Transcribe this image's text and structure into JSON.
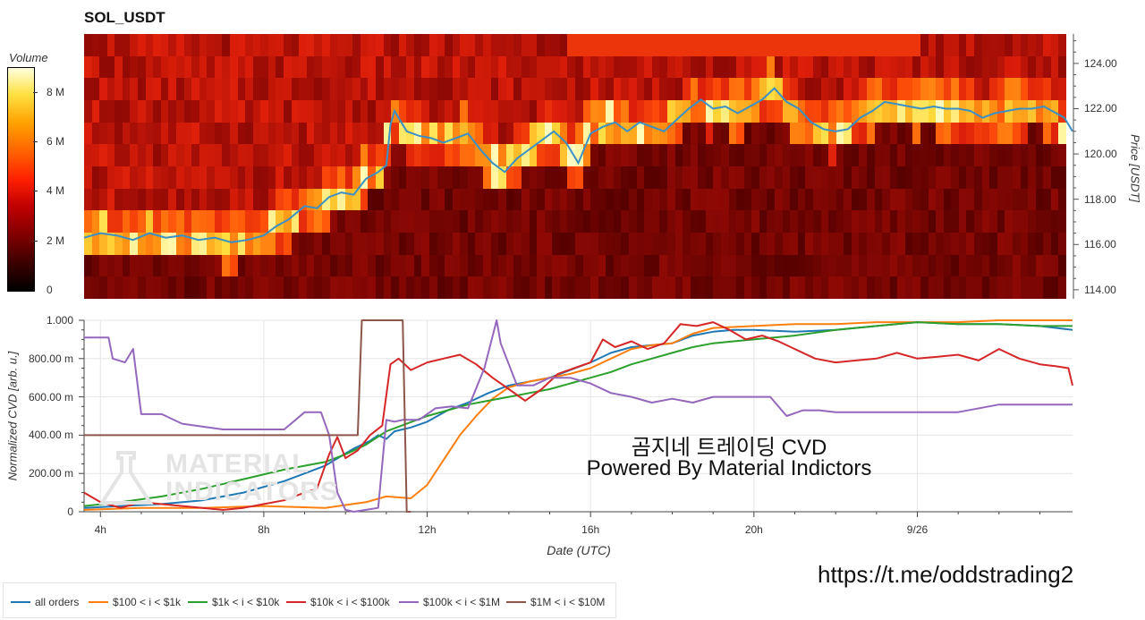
{
  "title": "SOL_USDT",
  "colorbar": {
    "label": "Volume",
    "ticks": [
      {
        "label": "8 M",
        "value": 8
      },
      {
        "label": "6 M",
        "value": 6
      },
      {
        "label": "4 M",
        "value": 4
      },
      {
        "label": "2 M",
        "value": 2
      },
      {
        "label": "0",
        "value": 0
      }
    ],
    "max_value": 9
  },
  "chart_data": [
    {
      "type": "heatmap",
      "title": "SOL_USDT",
      "ylabel": "Price [USDT]",
      "y_ticks": [
        "124.00",
        "122.00",
        "120.00",
        "118.00",
        "116.00",
        "114.00"
      ],
      "ylim": [
        113.6,
        125.3
      ],
      "zlabel": "Volume",
      "price_series": {
        "name": "price",
        "color": "#3a8fc4",
        "x_hours": [
          3.6,
          4.0,
          4.4,
          4.8,
          5.2,
          5.6,
          6.0,
          6.4,
          6.8,
          7.2,
          7.6,
          8.0,
          8.3,
          8.6,
          9.0,
          9.3,
          9.6,
          9.9,
          10.2,
          10.5,
          10.8,
          11.0,
          11.1,
          11.2,
          11.5,
          11.8,
          12.1,
          12.4,
          12.7,
          13.0,
          13.3,
          13.6,
          13.9,
          14.2,
          14.5,
          14.8,
          15.1,
          15.4,
          15.7,
          16.0,
          16.3,
          16.6,
          16.9,
          17.2,
          17.5,
          17.8,
          18.1,
          18.4,
          18.7,
          19.0,
          19.3,
          19.6,
          19.9,
          20.2,
          20.5,
          20.8,
          21.1,
          21.4,
          21.7,
          22.0,
          22.3,
          22.6,
          22.9,
          23.2,
          23.5,
          23.8,
          24.1,
          24.4,
          24.7,
          25.0,
          25.3,
          25.6,
          25.9,
          26.2,
          26.5,
          26.8,
          27.1,
          27.4,
          27.6,
          27.8
        ],
        "values": [
          116.3,
          116.5,
          116.4,
          116.2,
          116.5,
          116.3,
          116.4,
          116.2,
          116.3,
          116.1,
          116.2,
          116.4,
          116.8,
          117.1,
          117.7,
          117.6,
          118.1,
          118.3,
          118.2,
          118.9,
          119.2,
          119.5,
          121.3,
          121.9,
          121.0,
          120.8,
          120.7,
          120.5,
          120.7,
          120.9,
          120.2,
          119.6,
          119.2,
          119.8,
          120.2,
          120.6,
          121.0,
          120.5,
          119.6,
          120.9,
          121.2,
          121.4,
          121.0,
          121.4,
          121.2,
          121.0,
          121.5,
          122.0,
          122.4,
          122.0,
          122.1,
          121.8,
          122.1,
          122.4,
          122.9,
          122.3,
          122.0,
          121.4,
          121.1,
          121.0,
          121.1,
          121.6,
          121.9,
          122.3,
          122.2,
          122.1,
          122.0,
          122.1,
          122.0,
          122.0,
          121.9,
          121.6,
          121.8,
          121.9,
          122.0,
          122.0,
          122.1,
          121.8,
          121.6,
          121.0
        ]
      }
    },
    {
      "type": "line",
      "xlabel": "Date (UTC)",
      "ylabel": "Normalized CVD [arb. u.]",
      "x_ticks": [
        {
          "label": "4h",
          "hour": 4
        },
        {
          "label": "8h",
          "hour": 8
        },
        {
          "label": "12h",
          "hour": 12
        },
        {
          "label": "16h",
          "hour": 16
        },
        {
          "label": "20h",
          "hour": 20
        },
        {
          "label": "9/26",
          "hour": 24
        }
      ],
      "y_ticks": [
        {
          "label": "1.000",
          "value": 1.0
        },
        {
          "label": "800.00 m",
          "value": 0.8
        },
        {
          "label": "600.00 m",
          "value": 0.6
        },
        {
          "label": "400.00 m",
          "value": 0.4
        },
        {
          "label": "200.00 m",
          "value": 0.2
        },
        {
          "label": "0",
          "value": 0.0
        }
      ],
      "xlim": [
        3.6,
        27.8
      ],
      "ylim": [
        0,
        1
      ],
      "grid": true,
      "legend_position": "bottom-left",
      "series": [
        {
          "name": "all orders",
          "color": "#1f77b4",
          "x": [
            3.6,
            4.5,
            5.5,
            6.5,
            7.5,
            8.5,
            9.5,
            10.2,
            10.6,
            10.8,
            11.0,
            11.2,
            11.6,
            12.0,
            12.5,
            13.0,
            13.5,
            14.0,
            14.5,
            15.0,
            15.5,
            16.0,
            16.5,
            17.0,
            17.5,
            18.0,
            18.5,
            19.0,
            19.5,
            20.0,
            21.0,
            22.0,
            23.0,
            24.0,
            25.0,
            26.0,
            27.0,
            27.8
          ],
          "values": [
            0.02,
            0.03,
            0.04,
            0.06,
            0.1,
            0.16,
            0.24,
            0.33,
            0.37,
            0.4,
            0.38,
            0.42,
            0.44,
            0.47,
            0.53,
            0.57,
            0.62,
            0.66,
            0.68,
            0.7,
            0.74,
            0.78,
            0.83,
            0.86,
            0.87,
            0.88,
            0.92,
            0.94,
            0.95,
            0.95,
            0.94,
            0.95,
            0.97,
            0.99,
            0.98,
            0.98,
            0.97,
            0.95
          ]
        },
        {
          "name": "$100 < i < $1k",
          "color": "#ff7f0e",
          "x": [
            3.6,
            5.0,
            6.5,
            8.0,
            9.5,
            10.5,
            11.0,
            11.6,
            12.0,
            12.4,
            12.8,
            13.2,
            13.6,
            14.0,
            14.5,
            15.0,
            15.5,
            16.0,
            16.5,
            17.0,
            17.5,
            18.0,
            18.5,
            19.0,
            20.0,
            21.0,
            22.0,
            23.0,
            24.0,
            25.0,
            26.0,
            27.0,
            27.8
          ],
          "values": [
            0.01,
            0.02,
            0.02,
            0.03,
            0.02,
            0.05,
            0.08,
            0.07,
            0.14,
            0.27,
            0.4,
            0.5,
            0.59,
            0.65,
            0.68,
            0.7,
            0.72,
            0.75,
            0.8,
            0.85,
            0.87,
            0.88,
            0.93,
            0.96,
            0.97,
            0.98,
            0.98,
            0.99,
            0.99,
            0.99,
            1.0,
            1.0,
            1.0
          ]
        },
        {
          "name": "$1k < i < $10k",
          "color": "#2ca02c",
          "x": [
            3.6,
            4.5,
            5.5,
            6.5,
            7.5,
            8.5,
            9.5,
            10.0,
            10.5,
            11.0,
            11.5,
            12.0,
            12.5,
            13.0,
            13.5,
            14.0,
            14.5,
            15.0,
            15.5,
            16.0,
            16.5,
            17.0,
            17.5,
            18.0,
            18.5,
            19.0,
            19.5,
            20.0,
            21.0,
            22.0,
            23.0,
            24.0,
            25.0,
            26.0,
            27.0,
            27.8
          ],
          "values": [
            0.03,
            0.05,
            0.08,
            0.12,
            0.17,
            0.22,
            0.26,
            0.3,
            0.35,
            0.42,
            0.46,
            0.5,
            0.53,
            0.56,
            0.58,
            0.6,
            0.62,
            0.64,
            0.67,
            0.7,
            0.73,
            0.77,
            0.8,
            0.83,
            0.86,
            0.88,
            0.89,
            0.9,
            0.92,
            0.95,
            0.97,
            0.99,
            0.98,
            0.98,
            0.97,
            0.97
          ]
        },
        {
          "name": "$10k < i < $100k",
          "color": "#d62728",
          "x": [
            3.6,
            4.0,
            4.5,
            5.0,
            6.0,
            7.0,
            7.5,
            8.0,
            8.5,
            9.0,
            9.3,
            9.6,
            9.8,
            10.0,
            10.3,
            10.6,
            10.9,
            11.1,
            11.3,
            11.6,
            12.0,
            12.4,
            12.8,
            13.2,
            13.6,
            14.0,
            14.4,
            14.8,
            15.2,
            15.6,
            16.0,
            16.3,
            16.6,
            17.0,
            17.4,
            17.8,
            18.2,
            18.6,
            19.0,
            19.4,
            19.8,
            20.2,
            20.6,
            21.0,
            21.5,
            22.0,
            22.5,
            23.0,
            23.5,
            24.0,
            24.5,
            25.0,
            25.5,
            26.0,
            26.5,
            27.0,
            27.4,
            27.7,
            27.8
          ],
          "values": [
            0.1,
            0.05,
            0.02,
            0.05,
            0.03,
            0.01,
            0.02,
            0.04,
            0.06,
            0.1,
            0.12,
            0.3,
            0.39,
            0.28,
            0.32,
            0.4,
            0.45,
            0.77,
            0.8,
            0.74,
            0.78,
            0.8,
            0.82,
            0.77,
            0.7,
            0.64,
            0.58,
            0.64,
            0.72,
            0.75,
            0.78,
            0.9,
            0.86,
            0.89,
            0.85,
            0.88,
            0.98,
            0.97,
            0.99,
            0.95,
            0.9,
            0.92,
            0.89,
            0.85,
            0.8,
            0.78,
            0.79,
            0.8,
            0.83,
            0.8,
            0.81,
            0.82,
            0.79,
            0.85,
            0.8,
            0.77,
            0.76,
            0.75,
            0.66
          ]
        },
        {
          "name": "$100k < i < $1M",
          "color": "#9467bd",
          "x": [
            3.6,
            4.2,
            4.3,
            4.6,
            4.8,
            5.0,
            5.5,
            6.0,
            7.0,
            8.0,
            8.5,
            9.0,
            9.4,
            9.6,
            9.8,
            10.0,
            10.2,
            10.5,
            10.8,
            11.0,
            11.2,
            11.4,
            11.8,
            12.2,
            12.6,
            13.0,
            13.4,
            13.7,
            13.8,
            14.2,
            14.6,
            15.0,
            15.5,
            16.0,
            16.5,
            17.0,
            17.5,
            18.0,
            18.5,
            19.0,
            19.5,
            20.0,
            20.4,
            20.8,
            21.2,
            21.6,
            22.0,
            23.0,
            24.0,
            25.0,
            26.0,
            27.0,
            27.8
          ],
          "values": [
            0.91,
            0.91,
            0.8,
            0.78,
            0.85,
            0.51,
            0.51,
            0.46,
            0.43,
            0.43,
            0.43,
            0.52,
            0.52,
            0.4,
            0.1,
            0.01,
            0.0,
            0.01,
            0.02,
            0.48,
            0.47,
            0.48,
            0.48,
            0.54,
            0.55,
            0.54,
            0.75,
            1.0,
            0.88,
            0.66,
            0.66,
            0.7,
            0.7,
            0.67,
            0.62,
            0.6,
            0.57,
            0.59,
            0.57,
            0.6,
            0.6,
            0.6,
            0.6,
            0.5,
            0.53,
            0.53,
            0.52,
            0.52,
            0.52,
            0.52,
            0.56,
            0.56,
            0.56
          ]
        },
        {
          "name": "$1M < i < $10M",
          "color": "#8c564b",
          "x": [
            3.6,
            10.3,
            10.4,
            11.4,
            11.5,
            11.6
          ],
          "values": [
            0.4,
            0.4,
            1.0,
            1.0,
            0.0,
            0.0
          ]
        }
      ]
    }
  ],
  "watermark": {
    "line1": "MATERIAL",
    "line2": "INDICATORS"
  },
  "overlay": {
    "line1": "곰지네 트레이딩 CVD",
    "line2": "Powered By Material Indictors"
  },
  "url": "https://t.me/oddstrading2"
}
